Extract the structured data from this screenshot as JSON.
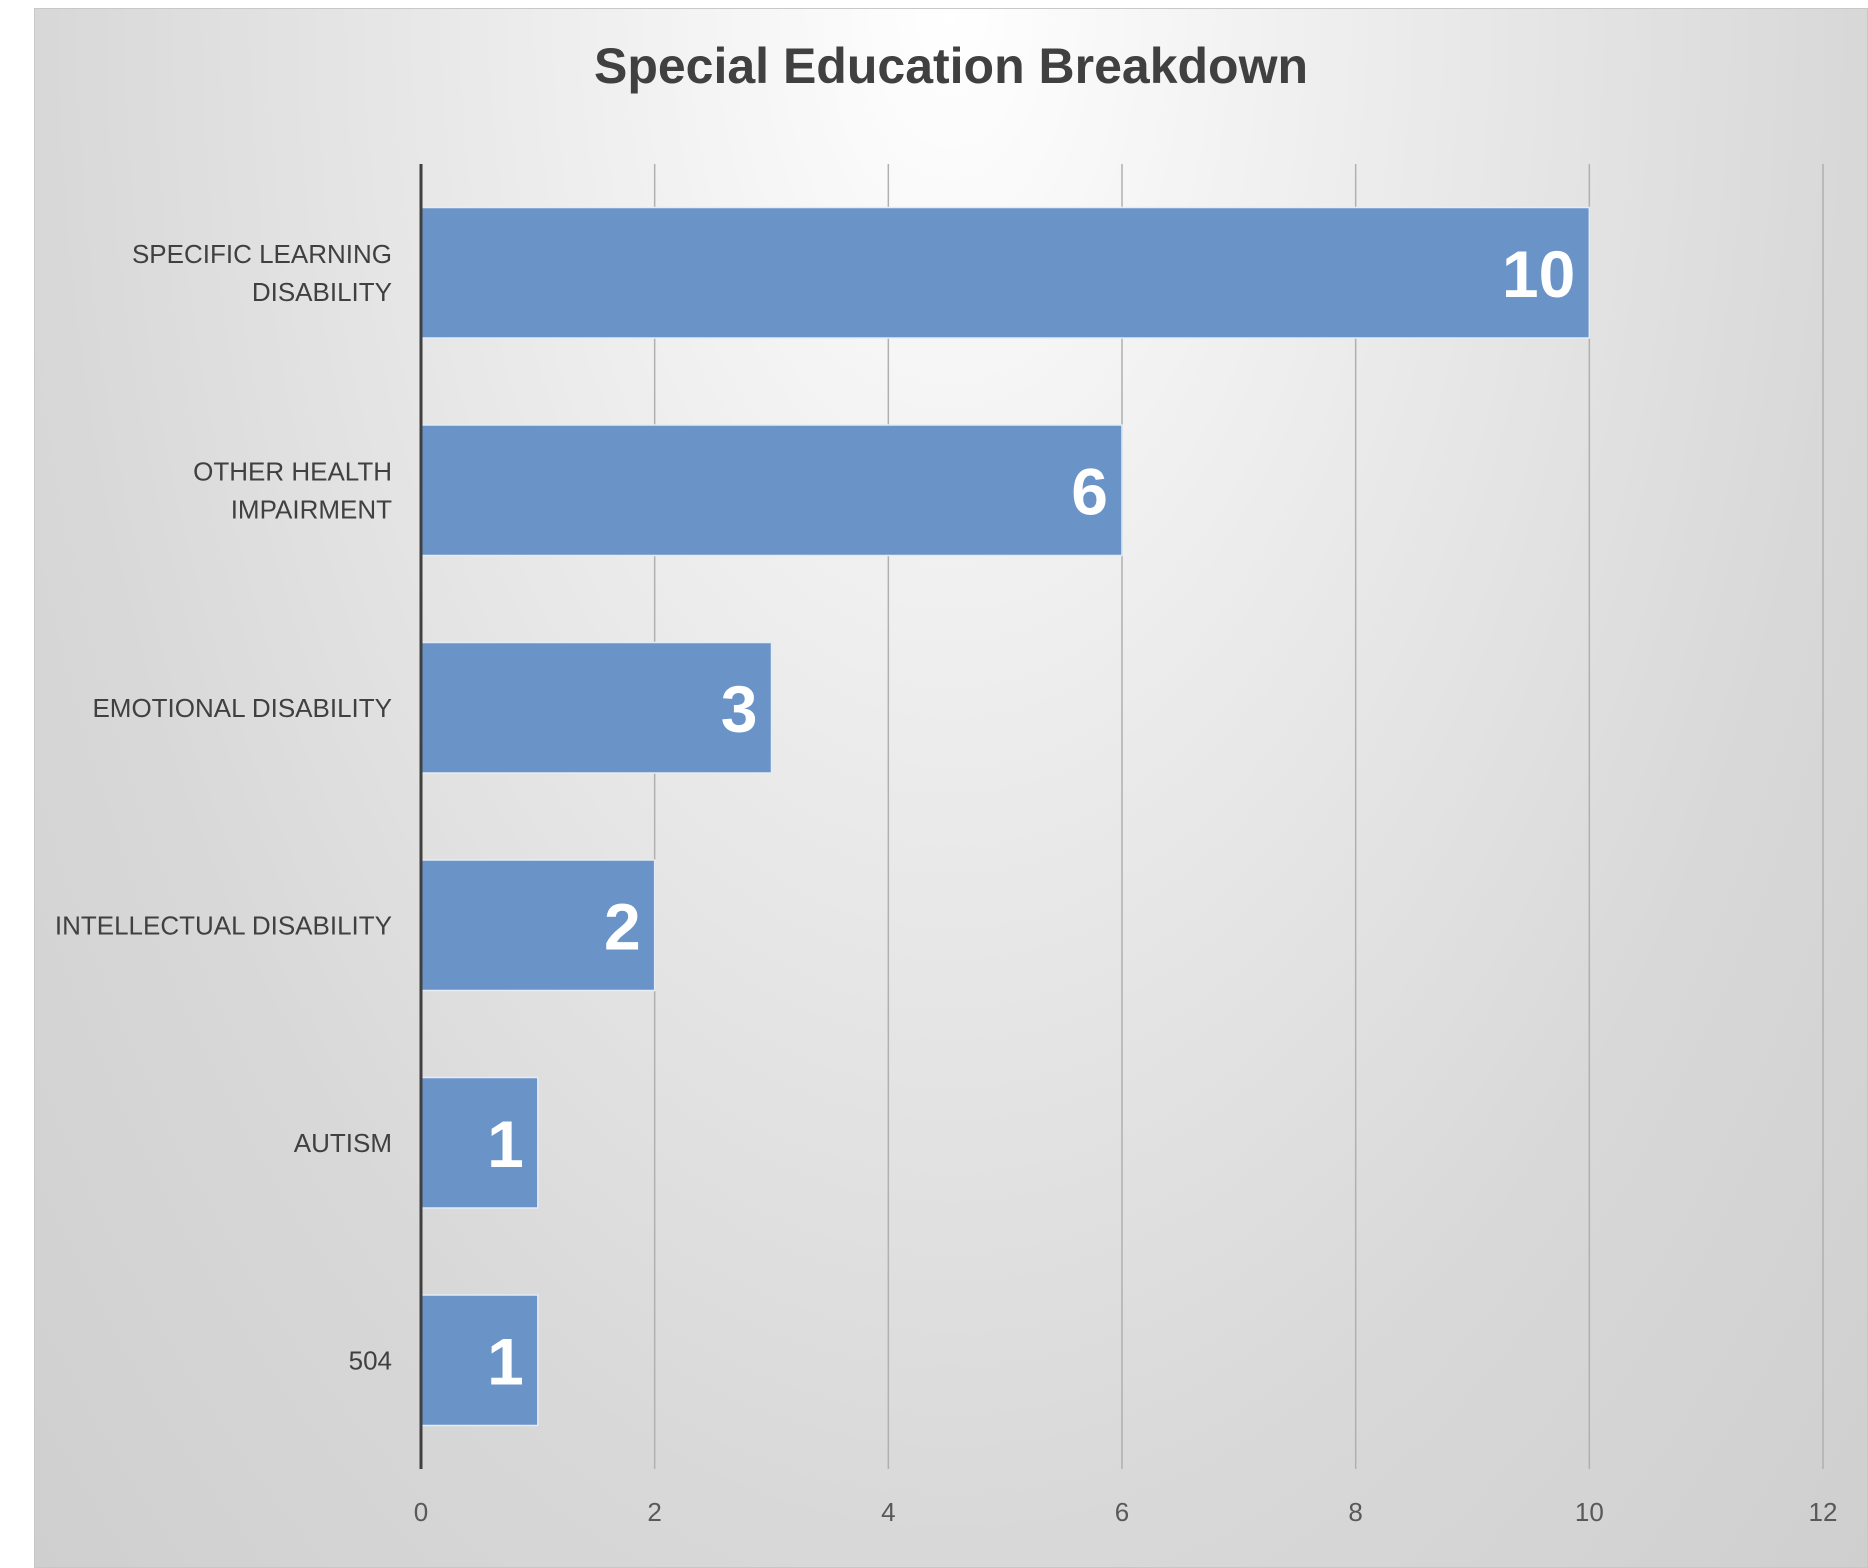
{
  "chart_data": {
    "type": "bar",
    "orientation": "horizontal",
    "title": "Special Education Breakdown",
    "categories": [
      [
        "SPECIFIC LEARNING",
        "DISABILITY"
      ],
      [
        "OTHER HEALTH",
        "IMPAIRMENT"
      ],
      [
        "EMOTIONAL DISABILITY"
      ],
      [
        "INTELLECTUAL DISABILITY"
      ],
      [
        "AUTISM"
      ],
      [
        "504"
      ]
    ],
    "values": [
      10,
      6,
      3,
      2,
      1,
      1
    ],
    "xlim": [
      0,
      12
    ],
    "xticks": [
      0,
      2,
      4,
      6,
      8,
      10,
      12
    ],
    "grid": true,
    "legend": "none",
    "colors": {
      "bar": "#6a94c8",
      "bar_border": "#e4ecf6",
      "gridline": "#b0b0b0",
      "axis": "#404040"
    }
  }
}
